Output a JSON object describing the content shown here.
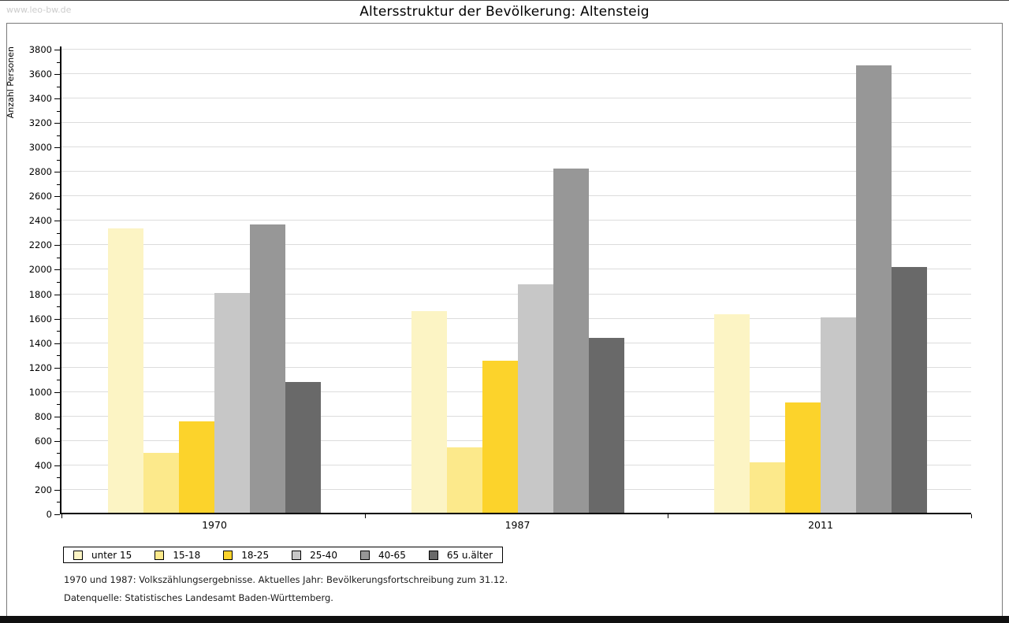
{
  "page": {
    "watermark": "www.leo-bw.de",
    "title": "Altersstruktur der Bevölkerung: Altensteig"
  },
  "chart_data": {
    "type": "bar",
    "title": "Altersstruktur der Bevölkerung: Altensteig",
    "xlabel": "",
    "ylabel": "Anzahl Personen",
    "ylim": [
      0,
      3800
    ],
    "ytick_step": 200,
    "y_minor_tick_step": 100,
    "grid": true,
    "legend_position": "bottom-left",
    "gridline_color": "#dcdcdc",
    "axis_color": "#000000",
    "categories": [
      "1970",
      "1987",
      "2011"
    ],
    "series": [
      {
        "name": "unter 15",
        "color": "#fcf4c4",
        "values": [
          2335,
          1660,
          1635
        ]
      },
      {
        "name": "15-18",
        "color": "#fce98b",
        "values": [
          505,
          545,
          425
        ]
      },
      {
        "name": "18-25",
        "color": "#fcd32b",
        "values": [
          760,
          1255,
          915
        ]
      },
      {
        "name": "25-40",
        "color": "#c7c7c7",
        "values": [
          1810,
          1880,
          1610
        ]
      },
      {
        "name": "40-65",
        "color": "#979797",
        "values": [
          2370,
          2830,
          3670
        ]
      },
      {
        "name": "65 u.älter",
        "color": "#696969",
        "values": [
          1080,
          1445,
          2020
        ]
      }
    ]
  },
  "footnotes": {
    "line1": "1970 und 1987: Volkszählungsergebnisse. Aktuelles Jahr: Bevölkerungsfortschreibung zum 31.12.",
    "line2": "Datenquelle: Statistisches Landesamt Baden-Württemberg."
  }
}
